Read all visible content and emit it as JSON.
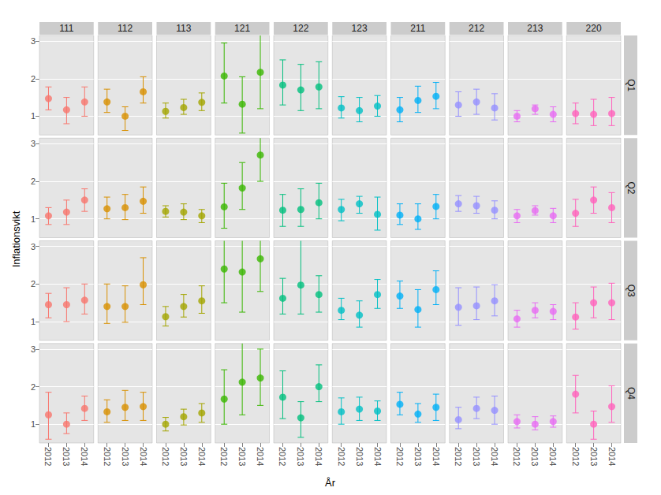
{
  "chart_data": {
    "type": "scatter",
    "x_label": "År",
    "y_label": "Inflationsvikt",
    "categories": [
      "2012",
      "2013",
      "2014"
    ],
    "ylim": [
      0.5,
      3.15
    ],
    "yticks": [
      1,
      2,
      3
    ],
    "grid": true,
    "facet_columns": [
      {
        "name": "111",
        "color": "#F8766D"
      },
      {
        "name": "112",
        "color": "#D89000"
      },
      {
        "name": "113",
        "color": "#A3A500"
      },
      {
        "name": "121",
        "color": "#39B600"
      },
      {
        "name": "122",
        "color": "#00BF7D"
      },
      {
        "name": "123",
        "color": "#00BFC4"
      },
      {
        "name": "211",
        "color": "#00B0F6"
      },
      {
        "name": "212",
        "color": "#9590FF"
      },
      {
        "name": "213",
        "color": "#E76BF3"
      },
      {
        "name": "220",
        "color": "#FF62BC"
      }
    ],
    "facet_rows": [
      "Q1",
      "Q2",
      "Q3",
      "Q4"
    ],
    "panels": [
      {
        "row": "Q1",
        "column": "111",
        "values": [
          1.47,
          1.17,
          1.38
        ],
        "lower": [
          1.17,
          0.8,
          1.0
        ],
        "upper": [
          1.78,
          1.5,
          1.78
        ]
      },
      {
        "row": "Q1",
        "column": "112",
        "values": [
          1.38,
          1.0,
          1.65
        ],
        "lower": [
          1.1,
          0.62,
          1.35
        ],
        "upper": [
          1.72,
          1.25,
          2.05
        ]
      },
      {
        "row": "Q1",
        "column": "113",
        "values": [
          1.13,
          1.23,
          1.37
        ],
        "lower": [
          0.95,
          1.05,
          1.15
        ],
        "upper": [
          1.35,
          1.45,
          1.62
        ]
      },
      {
        "row": "Q1",
        "column": "121",
        "values": [
          2.07,
          1.32,
          2.17
        ],
        "lower": [
          1.35,
          0.55,
          1.2
        ],
        "upper": [
          2.95,
          2.05,
          3.2
        ]
      },
      {
        "row": "Q1",
        "column": "122",
        "values": [
          1.83,
          1.7,
          1.78
        ],
        "lower": [
          1.3,
          1.15,
          1.2
        ],
        "upper": [
          2.5,
          2.38,
          2.45
        ]
      },
      {
        "row": "Q1",
        "column": "123",
        "values": [
          1.22,
          1.15,
          1.27
        ],
        "lower": [
          0.95,
          0.85,
          1.0
        ],
        "upper": [
          1.52,
          1.5,
          1.55
        ]
      },
      {
        "row": "Q1",
        "column": "211",
        "values": [
          1.17,
          1.42,
          1.53
        ],
        "lower": [
          0.85,
          1.1,
          1.2
        ],
        "upper": [
          1.5,
          1.8,
          1.9
        ]
      },
      {
        "row": "Q1",
        "column": "212",
        "values": [
          1.3,
          1.38,
          1.22
        ],
        "lower": [
          1.0,
          1.05,
          0.9
        ],
        "upper": [
          1.65,
          1.72,
          1.6
        ]
      },
      {
        "row": "Q1",
        "column": "213",
        "values": [
          1.0,
          1.2,
          1.05
        ],
        "lower": [
          0.85,
          1.05,
          0.85
        ],
        "upper": [
          1.15,
          1.3,
          1.25
        ]
      },
      {
        "row": "Q1",
        "column": "220",
        "values": [
          1.07,
          1.05,
          1.07
        ],
        "lower": [
          0.8,
          0.75,
          0.75
        ],
        "upper": [
          1.35,
          1.45,
          1.5
        ]
      },
      {
        "row": "Q2",
        "column": "111",
        "values": [
          1.08,
          1.18,
          1.5
        ],
        "lower": [
          0.85,
          0.85,
          1.2
        ],
        "upper": [
          1.3,
          1.5,
          1.8
        ]
      },
      {
        "row": "Q2",
        "column": "112",
        "values": [
          1.27,
          1.3,
          1.47
        ],
        "lower": [
          1.0,
          0.98,
          1.15
        ],
        "upper": [
          1.58,
          1.65,
          1.85
        ]
      },
      {
        "row": "Q2",
        "column": "113",
        "values": [
          1.2,
          1.18,
          1.08
        ],
        "lower": [
          1.05,
          0.98,
          0.9
        ],
        "upper": [
          1.35,
          1.4,
          1.25
        ]
      },
      {
        "row": "Q2",
        "column": "121",
        "values": [
          1.32,
          1.82,
          2.7
        ],
        "lower": [
          0.75,
          1.25,
          2.0
        ],
        "upper": [
          1.95,
          2.5,
          3.2
        ]
      },
      {
        "row": "Q2",
        "column": "122",
        "values": [
          1.23,
          1.25,
          1.43
        ],
        "lower": [
          0.8,
          0.8,
          1.0
        ],
        "upper": [
          1.65,
          1.8,
          1.95
        ]
      },
      {
        "row": "Q2",
        "column": "123",
        "values": [
          1.25,
          1.4,
          1.12
        ],
        "lower": [
          0.95,
          1.15,
          0.7
        ],
        "upper": [
          1.52,
          1.6,
          1.58
        ]
      },
      {
        "row": "Q2",
        "column": "211",
        "values": [
          1.1,
          1.0,
          1.33
        ],
        "lower": [
          0.85,
          0.72,
          1.0
        ],
        "upper": [
          1.4,
          1.4,
          1.65
        ]
      },
      {
        "row": "Q2",
        "column": "212",
        "values": [
          1.4,
          1.35,
          1.23
        ],
        "lower": [
          1.2,
          1.15,
          1.0
        ],
        "upper": [
          1.62,
          1.6,
          1.48
        ]
      },
      {
        "row": "Q2",
        "column": "213",
        "values": [
          1.08,
          1.22,
          1.08
        ],
        "lower": [
          0.9,
          1.1,
          0.9
        ],
        "upper": [
          1.25,
          1.35,
          1.28
        ]
      },
      {
        "row": "Q2",
        "column": "220",
        "values": [
          1.15,
          1.5,
          1.3
        ],
        "lower": [
          0.8,
          1.15,
          0.9
        ],
        "upper": [
          1.52,
          1.85,
          1.7
        ]
      },
      {
        "row": "Q3",
        "column": "111",
        "values": [
          1.45,
          1.45,
          1.57
        ],
        "lower": [
          1.1,
          1.0,
          1.2
        ],
        "upper": [
          1.75,
          1.9,
          2.0
        ]
      },
      {
        "row": "Q3",
        "column": "112",
        "values": [
          1.4,
          1.4,
          1.98
        ],
        "lower": [
          0.95,
          0.98,
          1.45
        ],
        "upper": [
          2.0,
          1.95,
          2.7
        ]
      },
      {
        "row": "Q3",
        "column": "113",
        "values": [
          1.13,
          1.4,
          1.55
        ],
        "lower": [
          0.88,
          1.12,
          1.22
        ],
        "upper": [
          1.4,
          1.72,
          1.95
        ]
      },
      {
        "row": "Q3",
        "column": "121",
        "values": [
          2.4,
          2.32,
          2.67
        ],
        "lower": [
          1.5,
          1.25,
          1.8
        ],
        "upper": [
          3.2,
          3.2,
          3.2
        ]
      },
      {
        "row": "Q3",
        "column": "122",
        "values": [
          1.62,
          1.97,
          1.72
        ],
        "lower": [
          1.2,
          1.2,
          1.25
        ],
        "upper": [
          2.15,
          3.2,
          2.22
        ]
      },
      {
        "row": "Q3",
        "column": "123",
        "values": [
          1.3,
          1.17,
          1.72
        ],
        "lower": [
          1.05,
          0.85,
          1.35
        ],
        "upper": [
          1.62,
          1.55,
          2.12
        ]
      },
      {
        "row": "Q3",
        "column": "211",
        "values": [
          1.68,
          1.32,
          1.85
        ],
        "lower": [
          1.35,
          0.85,
          1.45
        ],
        "upper": [
          2.08,
          1.85,
          2.35
        ]
      },
      {
        "row": "Q3",
        "column": "212",
        "values": [
          1.38,
          1.42,
          1.55
        ],
        "lower": [
          0.9,
          1.05,
          1.15
        ],
        "upper": [
          1.9,
          1.92,
          1.98
        ]
      },
      {
        "row": "Q3",
        "column": "213",
        "values": [
          1.07,
          1.3,
          1.27
        ],
        "lower": [
          0.85,
          1.1,
          1.05
        ],
        "upper": [
          1.3,
          1.5,
          1.45
        ]
      },
      {
        "row": "Q3",
        "column": "220",
        "values": [
          1.12,
          1.5,
          1.5
        ],
        "lower": [
          0.8,
          1.1,
          1.05
        ],
        "upper": [
          1.5,
          1.92,
          2.02
        ]
      },
      {
        "row": "Q4",
        "column": "111",
        "values": [
          1.25,
          1.0,
          1.42
        ],
        "lower": [
          0.6,
          0.75,
          1.1
        ],
        "upper": [
          1.85,
          1.3,
          1.75
        ]
      },
      {
        "row": "Q4",
        "column": "112",
        "values": [
          1.33,
          1.45,
          1.47
        ],
        "lower": [
          1.05,
          1.1,
          1.1
        ],
        "upper": [
          1.65,
          1.9,
          1.85
        ]
      },
      {
        "row": "Q4",
        "column": "113",
        "values": [
          1.0,
          1.2,
          1.3
        ],
        "lower": [
          0.82,
          0.98,
          1.05
        ],
        "upper": [
          1.18,
          1.4,
          1.55
        ]
      },
      {
        "row": "Q4",
        "column": "121",
        "values": [
          1.67,
          2.12,
          2.23
        ],
        "lower": [
          1.0,
          1.25,
          1.5
        ],
        "upper": [
          2.45,
          3.2,
          3.0
        ]
      },
      {
        "row": "Q4",
        "column": "122",
        "values": [
          1.72,
          1.17,
          2.0
        ],
        "lower": [
          1.15,
          0.65,
          1.6
        ],
        "upper": [
          2.42,
          1.6,
          2.58
        ]
      },
      {
        "row": "Q4",
        "column": "123",
        "values": [
          1.33,
          1.4,
          1.35
        ],
        "lower": [
          1.0,
          1.1,
          1.1
        ],
        "upper": [
          1.7,
          1.72,
          1.62
        ]
      },
      {
        "row": "Q4",
        "column": "211",
        "values": [
          1.53,
          1.27,
          1.45
        ],
        "lower": [
          1.25,
          1.05,
          1.1
        ],
        "upper": [
          1.85,
          1.55,
          1.8
        ]
      },
      {
        "row": "Q4",
        "column": "212",
        "values": [
          1.12,
          1.42,
          1.37
        ],
        "lower": [
          0.88,
          1.15,
          1.0
        ],
        "upper": [
          1.45,
          1.72,
          1.75
        ]
      },
      {
        "row": "Q4",
        "column": "213",
        "values": [
          1.07,
          1.0,
          1.07
        ],
        "lower": [
          0.9,
          0.85,
          0.92
        ],
        "upper": [
          1.25,
          1.2,
          1.22
        ]
      },
      {
        "row": "Q4",
        "column": "220",
        "values": [
          1.8,
          1.0,
          1.47
        ],
        "lower": [
          1.3,
          0.6,
          1.05
        ],
        "upper": [
          2.3,
          1.35,
          2.02
        ]
      }
    ]
  }
}
